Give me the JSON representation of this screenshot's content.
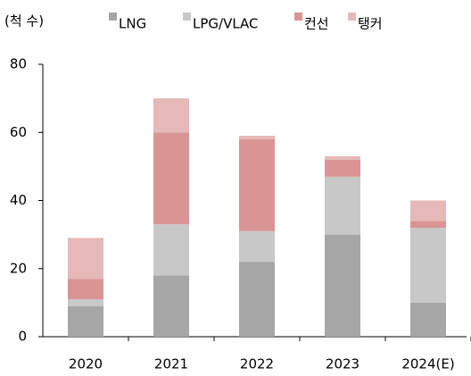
{
  "chart_data": {
    "type": "stacked_bar",
    "ylabel": "(척 수)",
    "categories": [
      "2020",
      "2021",
      "2022",
      "2023",
      "2024(E)"
    ],
    "series": [
      {
        "name": "LNG",
        "color": "#a6a6a6",
        "values": [
          9,
          18,
          22,
          30,
          10
        ]
      },
      {
        "name": "LPG/VLAC",
        "color": "#c8c8c8",
        "values": [
          2,
          15,
          9,
          17,
          22
        ]
      },
      {
        "name": "컨선",
        "color": "#d99594",
        "values": [
          6,
          27,
          27,
          5,
          2
        ]
      },
      {
        "name": "탱커",
        "color": "#e6b8b7",
        "values": [
          12,
          10,
          1,
          1,
          6
        ]
      }
    ],
    "ylim": [
      0,
      80
    ],
    "yticks": [
      0,
      20,
      40,
      60,
      80
    ],
    "legend": "top"
  }
}
